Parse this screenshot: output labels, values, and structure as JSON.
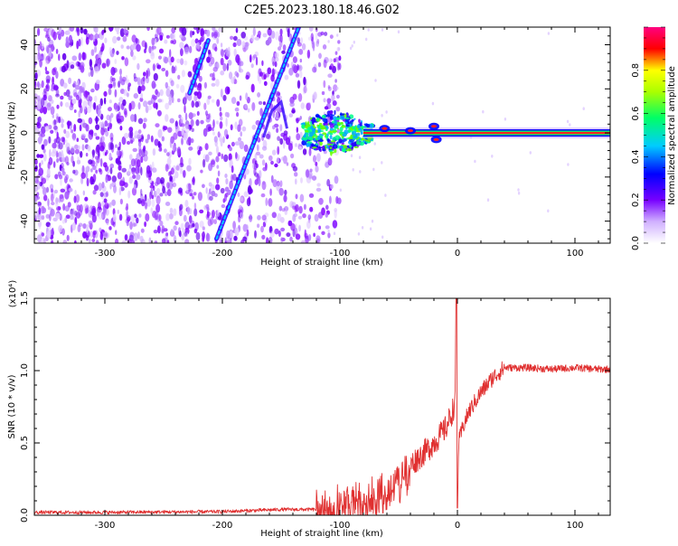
{
  "title": "C2E5.2023.180.18.46.G02",
  "chart_data": [
    {
      "type": "heatmap",
      "xlabel": "Height of straight line (km)",
      "ylabel": "Frequency (Hz)",
      "xlim": [
        -360,
        130
      ],
      "ylim": [
        -50,
        48
      ],
      "xticks": [
        -300,
        -200,
        -100,
        0,
        100
      ],
      "yticks": [
        -40,
        -20,
        0,
        20,
        40
      ],
      "colorbar": {
        "label": "Normalized spectral amplitude",
        "range": [
          0,
          1
        ],
        "ticks": [
          0.0,
          0.2,
          0.4,
          0.6,
          0.8
        ],
        "colors": [
          "#ffffff",
          "#7700ff",
          "#0000ff",
          "#00ccff",
          "#00ff00",
          "#ffff00",
          "#ff0000",
          "#ff0080"
        ]
      },
      "features": {
        "noise_region_x": [
          -360,
          -120
        ],
        "carrier_line": {
          "x": [
            -130,
            130
          ],
          "y": 0
        },
        "diagonal_traces": [
          {
            "x": [
              -205,
              -135
            ],
            "y": [
              -48,
              48
            ]
          },
          {
            "x": [
              -228,
              -212
            ],
            "y": [
              18,
              42
            ]
          }
        ]
      }
    },
    {
      "type": "line",
      "xlabel": "Height of straight line (km)",
      "ylabel": "SNR (10 * v/v)",
      "scale_note": "(x10⁴)",
      "xlim": [
        -360,
        130
      ],
      "ylim": [
        0,
        1.5
      ],
      "xticks": [
        -300,
        -200,
        -100,
        0,
        100
      ],
      "yticks": [
        "0.0",
        "0.5",
        "1.0",
        "1.5"
      ],
      "series": [
        {
          "color": "#e03030",
          "x": [
            -360,
            -300,
            -200,
            -150,
            -120,
            -100,
            -80,
            -60,
            -45,
            -40,
            -30,
            -20,
            -10,
            -5,
            -2,
            -1,
            0,
            1,
            5,
            10,
            20,
            30,
            40,
            60,
            80,
            100,
            120,
            130
          ],
          "y": [
            0.02,
            0.02,
            0.025,
            0.04,
            0.04,
            0.08,
            0.12,
            0.15,
            0.3,
            0.35,
            0.42,
            0.5,
            0.6,
            0.7,
            0.78,
            1.5,
            0.05,
            0.5,
            0.62,
            0.72,
            0.85,
            0.95,
            1.02,
            1.02,
            1.01,
            1.02,
            1.01,
            1.01
          ]
        }
      ]
    }
  ]
}
